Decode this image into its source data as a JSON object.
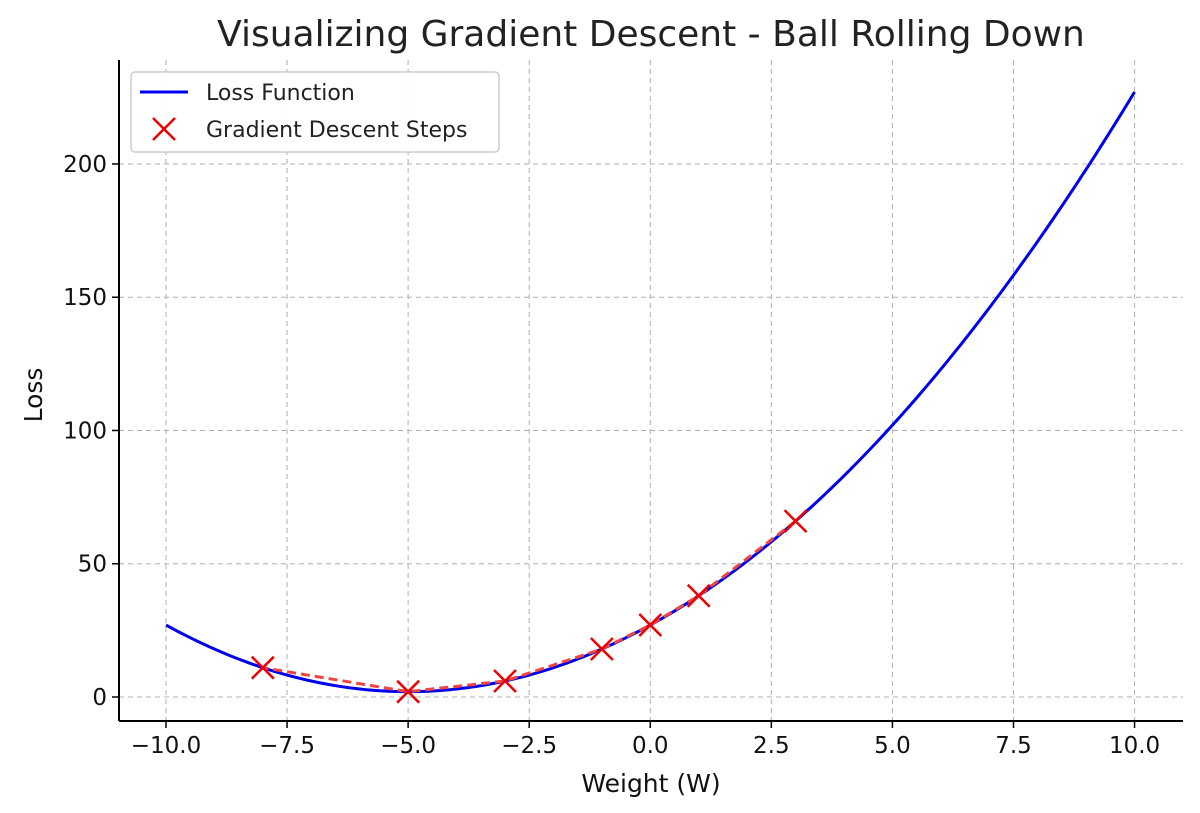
{
  "chart_data": {
    "type": "line",
    "title": "Visualizing Gradient Descent - Ball Rolling Down",
    "xlabel": "Weight (W)",
    "ylabel": "Loss",
    "xlim": [
      -10.97,
      11.0
    ],
    "ylim": [
      -9,
      239
    ],
    "xticks": [
      -10.0,
      -7.5,
      -5.0,
      -2.5,
      0.0,
      2.5,
      5.0,
      7.5,
      10.0
    ],
    "xtick_labels": [
      "−10.0",
      "−7.5",
      "−5.0",
      "−2.5",
      "0.0",
      "2.5",
      "5.0",
      "7.5",
      "10.0"
    ],
    "yticks": [
      0,
      50,
      100,
      150,
      200
    ],
    "ytick_labels": [
      "0",
      "50",
      "100",
      "150",
      "200"
    ],
    "grid": true,
    "legend_position": "top-left",
    "series": [
      {
        "name": "Loss Function",
        "kind": "curve",
        "color": "#0000ee",
        "function": "(w + 5)^2 + 2",
        "x_range": [
          -10,
          10
        ]
      },
      {
        "name": "Gradient Descent Steps",
        "kind": "markers",
        "marker": "x",
        "color": "#ee0000",
        "connector": "dashed",
        "connector_color": "#ee4444",
        "x": [
          3,
          1,
          0,
          -1,
          -3,
          -5,
          -8
        ],
        "y": [
          66,
          38,
          27,
          18,
          6,
          2,
          11
        ]
      }
    ]
  }
}
